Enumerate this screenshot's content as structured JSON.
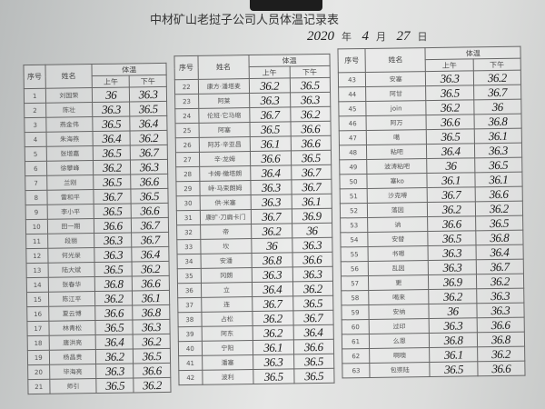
{
  "title": "中材矿山老挝子公司人员体温记录表",
  "date": {
    "year": "2020",
    "year_label": "年",
    "month": "4",
    "month_label": "月",
    "day": "27",
    "day_label": "日"
  },
  "headers": {
    "no": "序号",
    "name": "姓名",
    "temp": "体温",
    "am": "上午",
    "pm": "下午"
  },
  "rows": [
    [
      "1",
      "刘国荣",
      "36",
      "36.3"
    ],
    [
      "2",
      "陈壮",
      "36.3",
      "36.5"
    ],
    [
      "3",
      "燕金伟",
      "36.5",
      "36.4"
    ],
    [
      "4",
      "朱海燕",
      "36.4",
      "36.2"
    ],
    [
      "5",
      "张增嘉",
      "36.5",
      "36.7"
    ],
    [
      "6",
      "徐攀峰",
      "36.2",
      "36.3"
    ],
    [
      "7",
      "兰刚",
      "36.5",
      "36.6"
    ],
    [
      "8",
      "雷和平",
      "36.7",
      "36.5"
    ],
    [
      "9",
      "李小平",
      "36.5",
      "36.6"
    ],
    [
      "10",
      "田一期",
      "36.6",
      "36.7"
    ],
    [
      "11",
      "段丽",
      "36.3",
      "36.7"
    ],
    [
      "12",
      "何光录",
      "36.3",
      "36.4"
    ],
    [
      "13",
      "陆大斌",
      "36.5",
      "36.2"
    ],
    [
      "14",
      "张春华",
      "36.8",
      "36.6"
    ],
    [
      "15",
      "陈江平",
      "36.2",
      "36.1"
    ],
    [
      "16",
      "夏云博",
      "36.6",
      "36.8"
    ],
    [
      "17",
      "林青松",
      "36.5",
      "36.3"
    ],
    [
      "18",
      "唐洪亮",
      "36.4",
      "36.2"
    ],
    [
      "19",
      "杨昌贵",
      "36.2",
      "36.5"
    ],
    [
      "20",
      "毕海亮",
      "36.3",
      "36.6"
    ],
    [
      "21",
      "师引",
      "36.5",
      "36.2"
    ],
    [
      "22",
      "康方·潘塔麦",
      "36.2",
      "36.5"
    ],
    [
      "23",
      "阿莱",
      "36.3",
      "36.3"
    ],
    [
      "24",
      "伦班·它马缩",
      "36.7",
      "36.2"
    ],
    [
      "25",
      "阿塞",
      "36.5",
      "36.6"
    ],
    [
      "26",
      "阿苏·辛亚昌",
      "36.1",
      "36.6"
    ],
    [
      "27",
      "辛·龙姆",
      "36.6",
      "36.5"
    ],
    [
      "28",
      "卡姆·缴塔朗",
      "36.4",
      "36.7"
    ],
    [
      "29",
      "峙·马束朗姆",
      "36.3",
      "36.7"
    ],
    [
      "30",
      "供·米塞",
      "36.3",
      "36.1"
    ],
    [
      "31",
      "康扩·刀扁卡门",
      "36.7",
      "36.9"
    ],
    [
      "32",
      "帝",
      "36.2",
      "36"
    ],
    [
      "33",
      "坎",
      "36",
      "36.3"
    ],
    [
      "34",
      "安潘",
      "36.8",
      "36.6"
    ],
    [
      "35",
      "冈朗",
      "36.3",
      "36.3"
    ],
    [
      "36",
      "立",
      "36.4",
      "36.2"
    ],
    [
      "37",
      "连",
      "36.7",
      "36.5"
    ],
    [
      "38",
      "占松",
      "36.2",
      "36.7"
    ],
    [
      "39",
      "阿东",
      "36.2",
      "36.4"
    ],
    [
      "40",
      "宁阳",
      "36.1",
      "36.6"
    ],
    [
      "41",
      "潘塞",
      "36.3",
      "36.5"
    ],
    [
      "42",
      "波利",
      "36.5",
      "36.5"
    ],
    [
      "43",
      "安塞",
      "36.3",
      "36.2"
    ],
    [
      "44",
      "阿甘",
      "36.5",
      "36.7"
    ],
    [
      "45",
      "join",
      "36.2",
      "36"
    ],
    [
      "46",
      "阿万",
      "36.6",
      "36.8"
    ],
    [
      "47",
      "噶",
      "36.5",
      "36.1"
    ],
    [
      "48",
      "粘吧",
      "36.4",
      "36.3"
    ],
    [
      "49",
      "波涛粘吧",
      "36",
      "36.5"
    ],
    [
      "50",
      "塞ko",
      "36.1",
      "36.1"
    ],
    [
      "51",
      "沙克嘚",
      "36.7",
      "36.6"
    ],
    [
      "52",
      "落因",
      "36.2",
      "36.2"
    ],
    [
      "53",
      "讷",
      "36.6",
      "36.5"
    ],
    [
      "54",
      "安替",
      "36.5",
      "36.8"
    ],
    [
      "55",
      "书嗯",
      "36.3",
      "36.4"
    ],
    [
      "56",
      "乱因",
      "36.3",
      "36.7"
    ],
    [
      "57",
      "更",
      "36.9",
      "36.2"
    ],
    [
      "58",
      "喝来",
      "36.2",
      "36.3"
    ],
    [
      "59",
      "安纳",
      "36",
      "36.3"
    ],
    [
      "60",
      "过印",
      "36.3",
      "36.6"
    ],
    [
      "61",
      "么恩",
      "36.8",
      "36.8"
    ],
    [
      "62",
      "啊噢",
      "36.1",
      "36.2"
    ],
    [
      "63",
      "包崇陆",
      "36.5",
      "36.6"
    ]
  ]
}
